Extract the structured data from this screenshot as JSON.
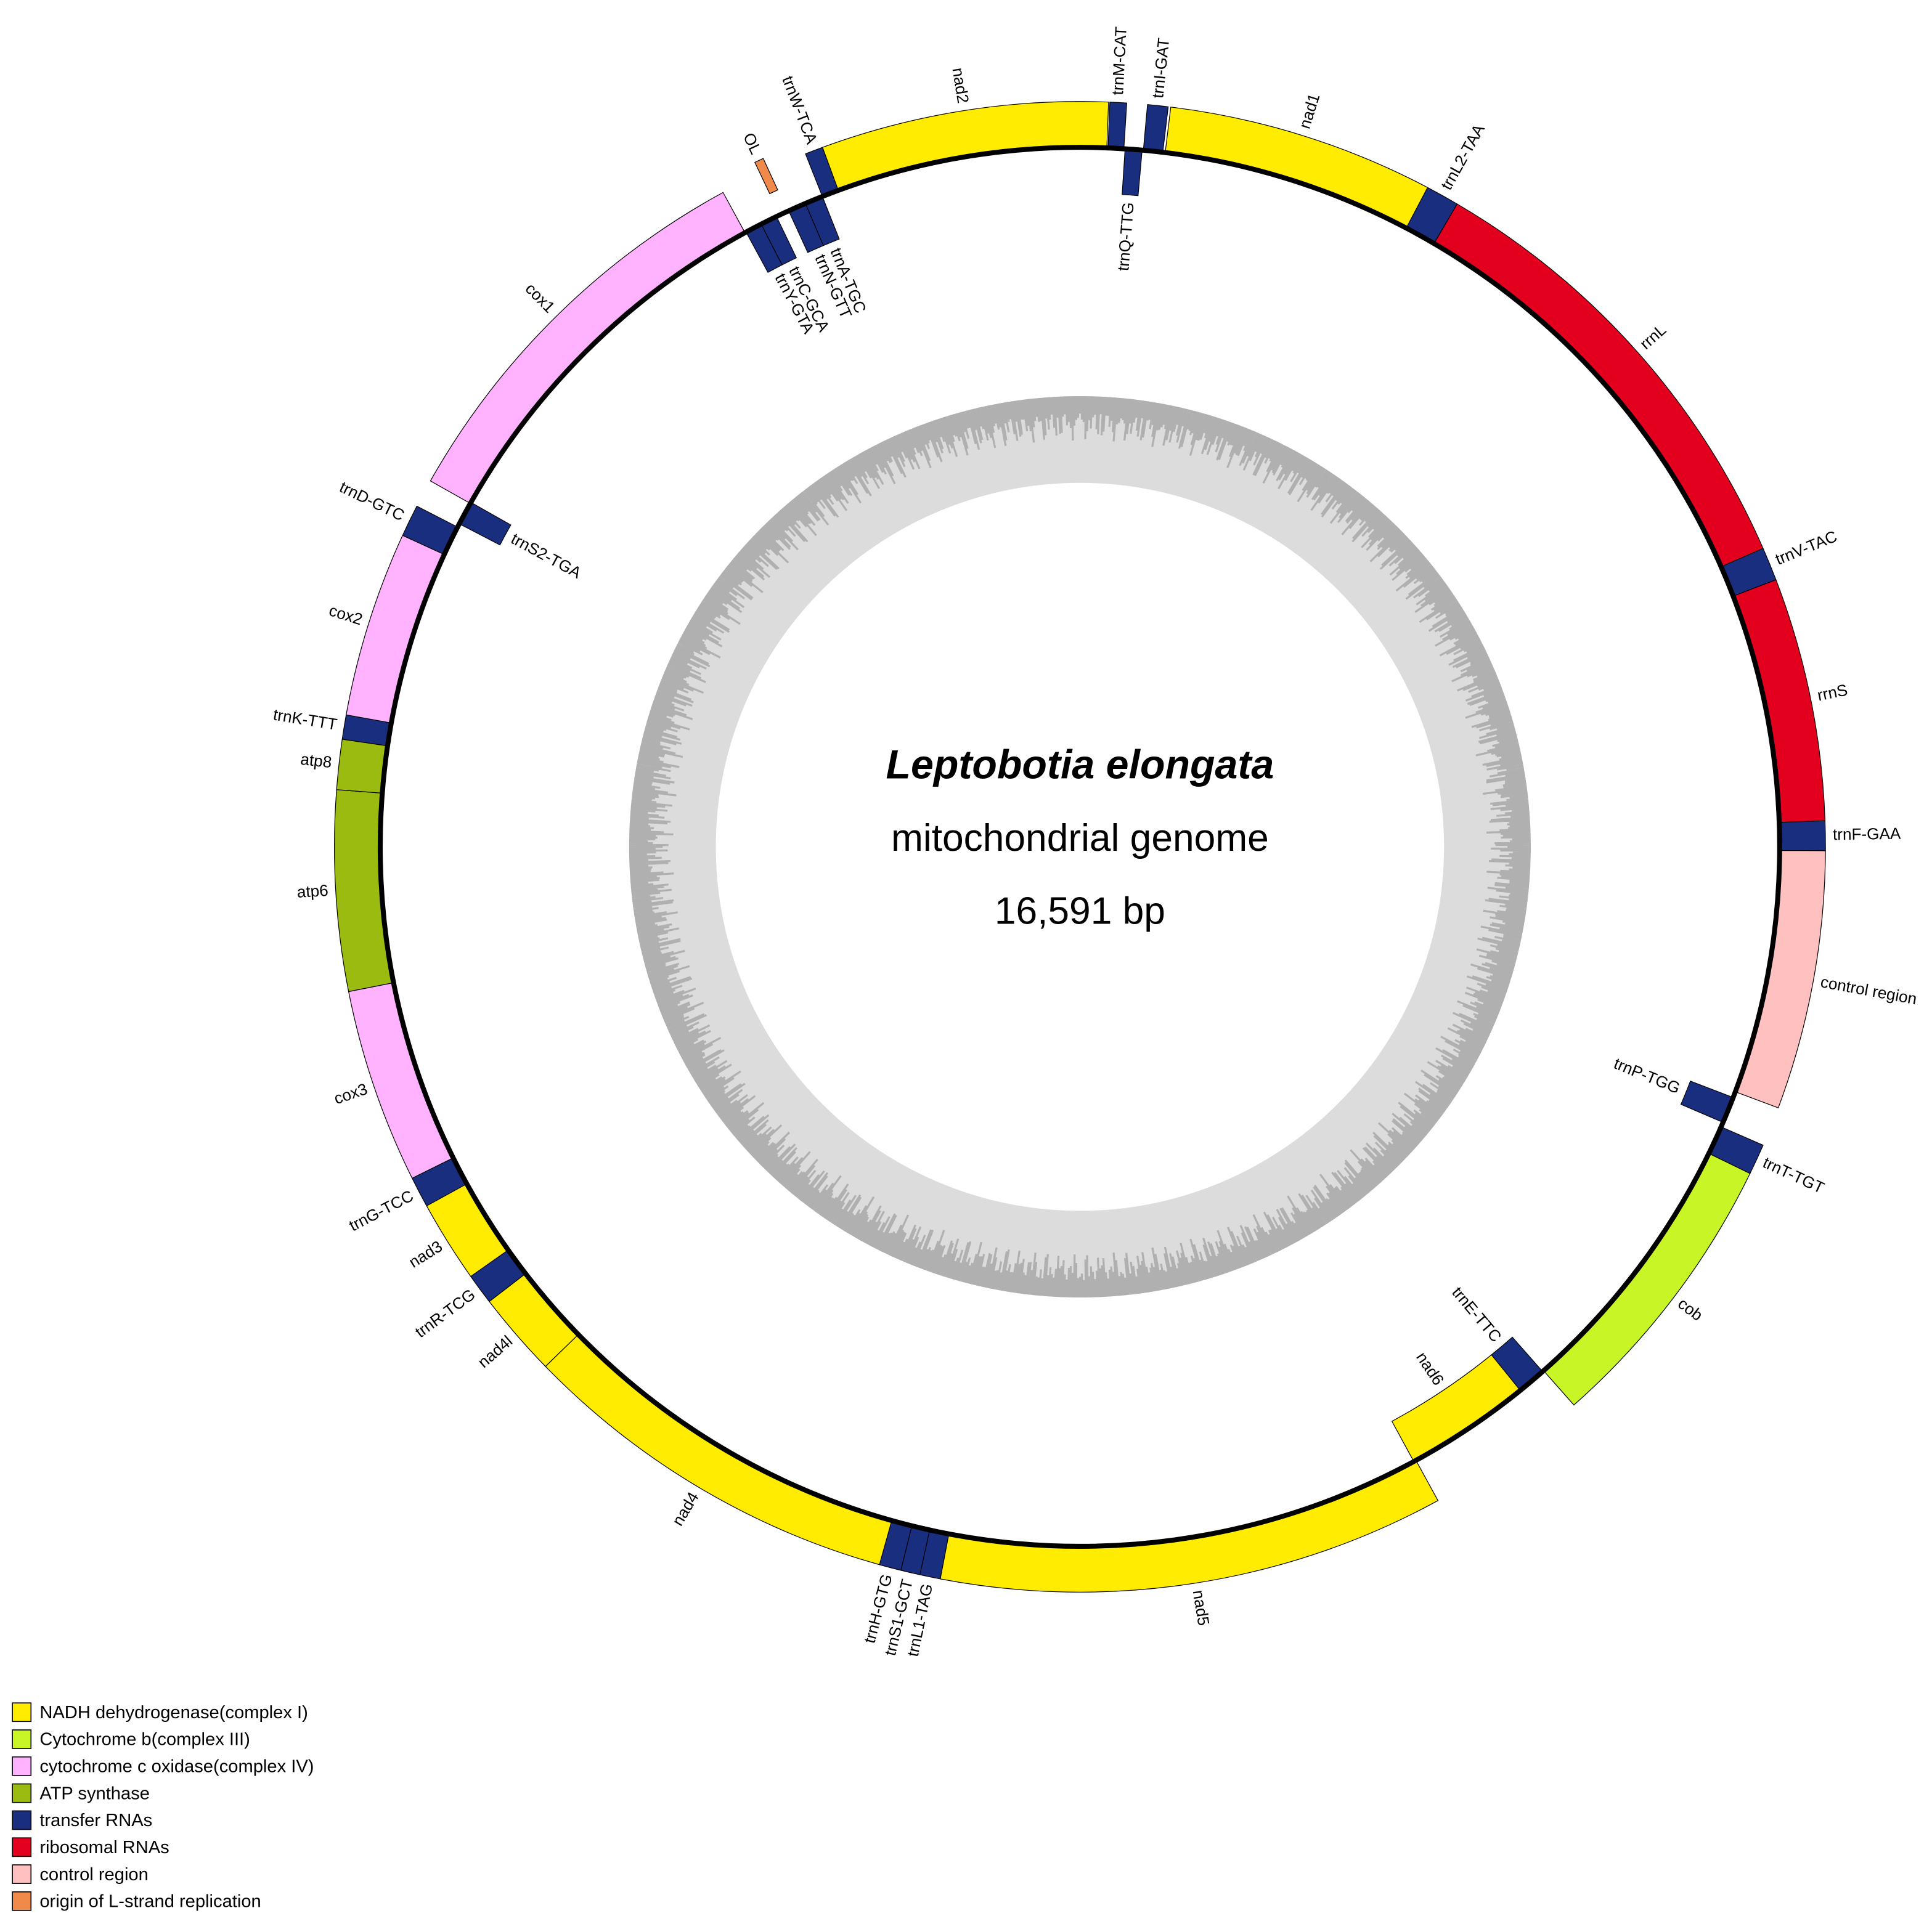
{
  "title": "Leptobotia elongata",
  "subtitle": "mitochondrial genome",
  "length": "16,591 bp",
  "genes": [
    {
      "name": "trnM-CAT",
      "color": "#1a2e80"
    },
    {
      "name": "trnQ-TTG",
      "color": "#1a2e80"
    },
    {
      "name": "trnI-GAT",
      "color": "#1a2e80"
    },
    {
      "name": "nad1",
      "color": "#ffec00"
    },
    {
      "name": "trnL2-TAA",
      "color": "#1a2e80"
    },
    {
      "name": "rrnL",
      "color": "#e2001e"
    },
    {
      "name": "trnV-TAC",
      "color": "#1a2e80"
    },
    {
      "name": "rrnS",
      "color": "#e2001e"
    },
    {
      "name": "trnF-GAA",
      "color": "#1a2e80"
    },
    {
      "name": "control region",
      "color": "#ffc0c0"
    },
    {
      "name": "trnP-TGG",
      "color": "#1a2e80"
    },
    {
      "name": "trnT-TGT",
      "color": "#1a2e80"
    },
    {
      "name": "cob",
      "color": "#c8f525"
    },
    {
      "name": "trnE-TTC",
      "color": "#1a2e80"
    },
    {
      "name": "nad6",
      "color": "#ffec00"
    },
    {
      "name": "nad5",
      "color": "#ffec00"
    },
    {
      "name": "trnL1-TAG",
      "color": "#1a2e80"
    },
    {
      "name": "trnS1-GCT",
      "color": "#1a2e80"
    },
    {
      "name": "trnH-GTG",
      "color": "#1a2e80"
    },
    {
      "name": "nad4",
      "color": "#ffec00"
    },
    {
      "name": "nad4l",
      "color": "#ffec00"
    },
    {
      "name": "trnR-TCG",
      "color": "#1a2e80"
    },
    {
      "name": "nad3",
      "color": "#ffec00"
    },
    {
      "name": "trnG-TCC",
      "color": "#1a2e80"
    },
    {
      "name": "cox3",
      "color": "#ffb3ff"
    },
    {
      "name": "atp6",
      "color": "#9bbb10"
    },
    {
      "name": "atp8",
      "color": "#9bbb10"
    },
    {
      "name": "trnK-TTT",
      "color": "#1a2e80"
    },
    {
      "name": "cox2",
      "color": "#ffb3ff"
    },
    {
      "name": "trnD-GTC",
      "color": "#1a2e80"
    },
    {
      "name": "trnS2-TGA",
      "color": "#1a2e80"
    },
    {
      "name": "cox1",
      "color": "#ffb3ff"
    },
    {
      "name": "trnY-GTA",
      "color": "#1a2e80"
    },
    {
      "name": "trnC-GCA",
      "color": "#1a2e80"
    },
    {
      "name": "OL",
      "color": "#f08a4b"
    },
    {
      "name": "trnN-GTT",
      "color": "#1a2e80"
    },
    {
      "name": "trnA-TGC",
      "color": "#1a2e80"
    },
    {
      "name": "trnW-TCA",
      "color": "#1a2e80"
    },
    {
      "name": "nad2",
      "color": "#ffec00"
    }
  ],
  "legend": [
    {
      "label": "NADH dehydrogenase(complex I)",
      "color": "#ffec00"
    },
    {
      "label": "Cytochrome b(complex III)",
      "color": "#c8f525"
    },
    {
      "label": "cytochrome c oxidase(complex IV)",
      "color": "#ffb3ff"
    },
    {
      "label": "ATP synthase",
      "color": "#9bbb10"
    },
    {
      "label": "transfer RNAs",
      "color": "#1a2e80"
    },
    {
      "label": "ribosomal RNAs",
      "color": "#e2001e"
    },
    {
      "label": "control region",
      "color": "#ffc0c0"
    },
    {
      "label": "origin of L-strand replication",
      "color": "#f08a4b"
    }
  ]
}
